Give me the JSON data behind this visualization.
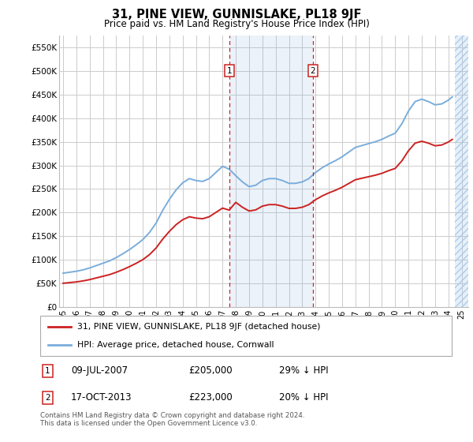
{
  "title": "31, PINE VIEW, GUNNISLAKE, PL18 9JF",
  "subtitle": "Price paid vs. HM Land Registry's House Price Index (HPI)",
  "footer": "Contains HM Land Registry data © Crown copyright and database right 2024.\nThis data is licensed under the Open Government Licence v3.0.",
  "legend_line1": "31, PINE VIEW, GUNNISLAKE, PL18 9JF (detached house)",
  "legend_line2": "HPI: Average price, detached house, Cornwall",
  "transaction1": {
    "label": "1",
    "date": "09-JUL-2007",
    "price": "£205,000",
    "hpi": "29% ↓ HPI"
  },
  "transaction2": {
    "label": "2",
    "date": "17-OCT-2013",
    "price": "£223,000",
    "hpi": "20% ↓ HPI"
  },
  "ylim": [
    0,
    575000
  ],
  "yticks": [
    0,
    50000,
    100000,
    150000,
    200000,
    250000,
    300000,
    350000,
    400000,
    450000,
    500000,
    550000
  ],
  "ytick_labels": [
    "£0",
    "£50K",
    "£100K",
    "£150K",
    "£200K",
    "£250K",
    "£300K",
    "£350K",
    "£400K",
    "£450K",
    "£500K",
    "£550K"
  ],
  "hpi_color": "#7aaddc",
  "price_color": "#cc2222",
  "marker1_x": 2007.52,
  "marker2_x": 2013.79,
  "shaded_region_x1": 2007.52,
  "shaded_region_x2": 2013.79,
  "hatch_region_x_start": 2024.5,
  "hatch_region_x_end": 2025.6,
  "background_color": "#ffffff",
  "grid_color": "#cccccc",
  "xlim_start": 1994.7,
  "xlim_end": 2025.5
}
